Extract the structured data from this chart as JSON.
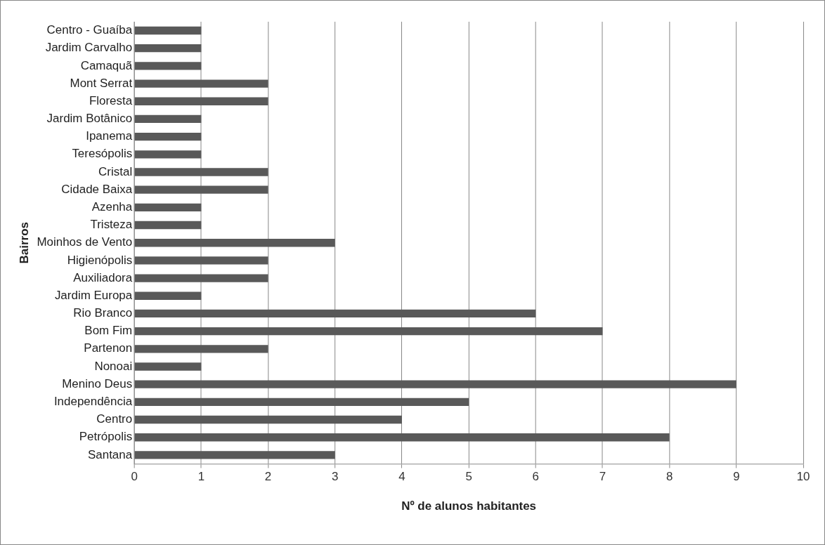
{
  "chart_data": {
    "type": "bar",
    "orientation": "horizontal",
    "xlabel": "Nº de alunos habitantes",
    "ylabel": "Bairros",
    "categories": [
      "Centro - Guaíba",
      "Jardim Carvalho",
      "Camaquã",
      "Mont Serrat",
      "Floresta",
      "Jardim Botânico",
      "Ipanema",
      "Teresópolis",
      "Cristal",
      "Cidade Baixa",
      "Azenha",
      "Tristeza",
      "Moinhos de Vento",
      "Higienópolis",
      "Auxiliadora",
      "Jardim Europa",
      "Rio Branco",
      "Bom Fim",
      "Partenon",
      "Nonoai",
      "Menino Deus",
      "Independência",
      "Centro",
      "Petrópolis",
      "Santana"
    ],
    "values": [
      1,
      1,
      1,
      2,
      2,
      1,
      1,
      1,
      2,
      2,
      1,
      1,
      3,
      2,
      2,
      1,
      6,
      7,
      2,
      1,
      9,
      5,
      4,
      8,
      3
    ],
    "color": "#595959",
    "xlim": [
      0,
      10
    ],
    "xticks": [
      0,
      1,
      2,
      3,
      4,
      5,
      6,
      7,
      8,
      9,
      10
    ],
    "grid": "x",
    "legend": false
  }
}
